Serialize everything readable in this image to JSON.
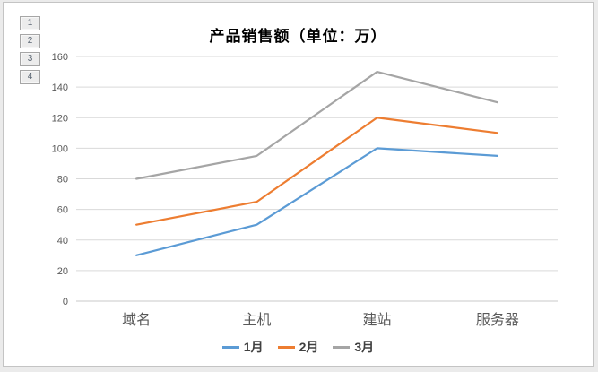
{
  "outline": {
    "buttons": [
      "1",
      "2",
      "3",
      "4"
    ]
  },
  "chart_data": {
    "type": "line",
    "title": "产品销售额（单位：万）",
    "categories": [
      "域名",
      "主机",
      "建站",
      "服务器"
    ],
    "series": [
      {
        "name": "1月",
        "color": "#5B9BD5",
        "values": [
          30,
          50,
          100,
          95
        ]
      },
      {
        "name": "2月",
        "color": "#ED7D31",
        "values": [
          50,
          65,
          120,
          110
        ]
      },
      {
        "name": "3月",
        "color": "#A5A5A5",
        "values": [
          80,
          95,
          150,
          130
        ]
      }
    ],
    "ylim": [
      0,
      160
    ],
    "yticks": [
      0,
      20,
      40,
      60,
      80,
      100,
      120,
      140,
      160
    ],
    "xlabel": "",
    "ylabel": "",
    "grid": true,
    "legend_position": "bottom"
  },
  "colors": {
    "series_blue": "#5B9BD5",
    "series_orange": "#ED7D31",
    "series_gray": "#A5A5A5",
    "gridline": "#d9d9d9",
    "axis_line": "#c9c9c9",
    "tick_label": "#595959",
    "category_label": "#595959",
    "legend_text": "#404040",
    "title_text": "#000000",
    "frame_border": "#c4c4c4",
    "chart_bg": "#ffffff",
    "page_bg": "#ebebeb",
    "outline_button_bg": "#ececec",
    "outline_button_border": "#a6a6a6",
    "outline_button_text": "#5a6572"
  }
}
